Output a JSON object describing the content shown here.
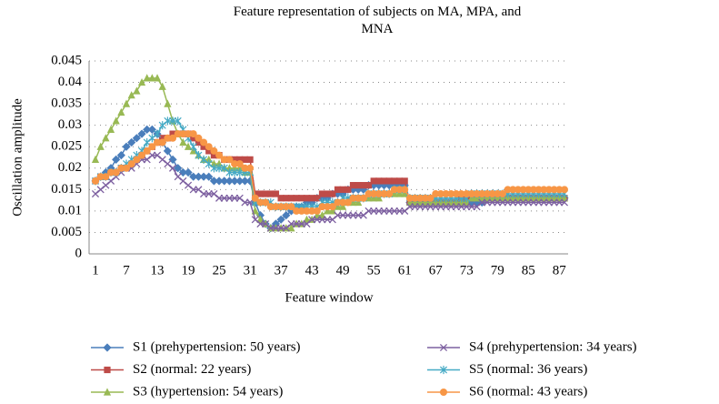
{
  "chart_data": {
    "type": "line",
    "title": "Feature representation of subjects on MA, MPA, and MNA",
    "x_label": "Feature window",
    "y_label": "Oscillation amplitude",
    "categories": [
      "1",
      null,
      null,
      null,
      null,
      null,
      "7",
      null,
      null,
      null,
      null,
      null,
      "13",
      null,
      null,
      null,
      null,
      null,
      "19",
      null,
      null,
      null,
      null,
      null,
      "25",
      null,
      null,
      null,
      null,
      null,
      "31",
      null,
      null,
      null,
      null,
      null,
      "37",
      null,
      null,
      null,
      null,
      null,
      "43",
      null,
      null,
      null,
      null,
      null,
      "49",
      null,
      null,
      null,
      null,
      null,
      "55",
      null,
      null,
      null,
      null,
      null,
      "61",
      null,
      null,
      null,
      null,
      null,
      "67",
      null,
      null,
      null,
      null,
      null,
      "73",
      null,
      null,
      null,
      null,
      null,
      "79",
      null,
      null,
      null,
      null,
      null,
      "85",
      null,
      null,
      null,
      null,
      null,
      "87",
      null
    ],
    "ylim": [
      0,
      0.045
    ],
    "yticks": [
      0,
      0.005,
      0.01,
      0.015,
      0.02,
      0.025,
      0.03,
      0.035,
      0.04,
      0.045
    ],
    "grid": true,
    "legend": "bottom",
    "series": [
      {
        "name": "S1 (prehypertension: 50 years)",
        "color": "#4a7ebb",
        "marker": "diamond",
        "values": [
          0.017,
          0.018,
          0.019,
          0.02,
          0.022,
          0.023,
          0.025,
          0.026,
          0.027,
          0.028,
          0.029,
          0.029,
          0.028,
          0.026,
          0.024,
          0.022,
          0.02,
          0.019,
          0.019,
          0.018,
          0.018,
          0.018,
          0.018,
          0.017,
          0.017,
          0.017,
          0.017,
          0.017,
          0.017,
          0.017,
          0.017,
          0.012,
          0.009,
          0.007,
          0.006,
          0.007,
          0.008,
          0.009,
          0.01,
          0.011,
          0.011,
          0.012,
          0.012,
          0.013,
          0.013,
          0.013,
          0.014,
          0.014,
          0.014,
          0.015,
          0.015,
          0.015,
          0.015,
          0.016,
          0.016,
          0.016,
          0.016,
          0.016,
          0.016,
          0.016,
          0.016,
          0.012,
          0.012,
          0.012,
          0.012,
          0.012,
          0.012,
          0.012,
          0.012,
          0.012,
          0.012,
          0.012,
          0.012,
          0.012,
          0.012,
          0.012,
          0.013,
          0.013,
          0.013,
          0.013,
          0.013,
          0.013,
          0.013,
          0.013,
          0.013,
          0.013,
          0.013,
          0.013,
          0.013,
          0.013,
          0.013,
          0.013
        ]
      },
      {
        "name": "S2 (normal: 22 years)",
        "color": "#be4b48",
        "marker": "square",
        "values": [
          0.017,
          0.018,
          0.018,
          0.019,
          0.019,
          0.02,
          0.02,
          0.021,
          0.022,
          0.023,
          0.024,
          0.025,
          0.026,
          0.027,
          0.027,
          0.028,
          0.028,
          0.028,
          0.028,
          0.027,
          0.026,
          0.025,
          0.024,
          0.023,
          0.023,
          0.022,
          0.022,
          0.022,
          0.022,
          0.022,
          0.022,
          0.014,
          0.014,
          0.014,
          0.014,
          0.014,
          0.013,
          0.013,
          0.013,
          0.013,
          0.013,
          0.013,
          0.013,
          0.013,
          0.014,
          0.014,
          0.014,
          0.015,
          0.015,
          0.015,
          0.016,
          0.016,
          0.016,
          0.016,
          0.017,
          0.017,
          0.017,
          0.017,
          0.017,
          0.017,
          0.017,
          0.012,
          0.012,
          0.012,
          0.012,
          0.012,
          0.012,
          0.012,
          0.012,
          0.012,
          0.012,
          0.013,
          0.013,
          0.013,
          0.013,
          0.013,
          0.013,
          0.013,
          0.013,
          0.013,
          0.013,
          0.013,
          0.013,
          0.013,
          0.013,
          0.013,
          0.013,
          0.013,
          0.013,
          0.013,
          0.013,
          0.013
        ]
      },
      {
        "name": "S3 (hypertension: 54 years)",
        "color": "#98b954",
        "marker": "triangle",
        "values": [
          0.022,
          0.025,
          0.027,
          0.029,
          0.031,
          0.033,
          0.035,
          0.037,
          0.038,
          0.04,
          0.041,
          0.041,
          0.041,
          0.039,
          0.035,
          0.031,
          0.028,
          0.026,
          0.025,
          0.024,
          0.023,
          0.022,
          0.022,
          0.021,
          0.021,
          0.02,
          0.02,
          0.02,
          0.02,
          0.019,
          0.019,
          0.01,
          0.008,
          0.007,
          0.006,
          0.006,
          0.006,
          0.006,
          0.006,
          0.007,
          0.007,
          0.008,
          0.008,
          0.009,
          0.009,
          0.01,
          0.01,
          0.011,
          0.011,
          0.012,
          0.012,
          0.012,
          0.013,
          0.013,
          0.013,
          0.013,
          0.014,
          0.014,
          0.014,
          0.014,
          0.014,
          0.012,
          0.012,
          0.012,
          0.012,
          0.012,
          0.012,
          0.012,
          0.012,
          0.012,
          0.012,
          0.012,
          0.012,
          0.013,
          0.013,
          0.013,
          0.013,
          0.013,
          0.013,
          0.013,
          0.013,
          0.013,
          0.013,
          0.013,
          0.013,
          0.013,
          0.013,
          0.013,
          0.013,
          0.013,
          0.013,
          0.013
        ]
      },
      {
        "name": "S4 (prehypertension: 34 years)",
        "color": "#7d60a0",
        "marker": "x",
        "values": [
          0.014,
          0.015,
          0.016,
          0.017,
          0.018,
          0.019,
          0.02,
          0.02,
          0.021,
          0.022,
          0.022,
          0.023,
          0.023,
          0.022,
          0.021,
          0.02,
          0.018,
          0.017,
          0.016,
          0.015,
          0.015,
          0.014,
          0.014,
          0.014,
          0.013,
          0.013,
          0.013,
          0.013,
          0.013,
          0.012,
          0.012,
          0.008,
          0.007,
          0.007,
          0.006,
          0.006,
          0.006,
          0.006,
          0.007,
          0.007,
          0.007,
          0.007,
          0.008,
          0.008,
          0.008,
          0.008,
          0.008,
          0.009,
          0.009,
          0.009,
          0.009,
          0.009,
          0.009,
          0.01,
          0.01,
          0.01,
          0.01,
          0.01,
          0.01,
          0.01,
          0.01,
          0.011,
          0.011,
          0.011,
          0.011,
          0.011,
          0.011,
          0.011,
          0.011,
          0.011,
          0.011,
          0.011,
          0.011,
          0.011,
          0.011,
          0.012,
          0.012,
          0.012,
          0.012,
          0.012,
          0.012,
          0.012,
          0.012,
          0.012,
          0.012,
          0.012,
          0.012,
          0.012,
          0.012,
          0.012,
          0.012,
          0.012
        ]
      },
      {
        "name": "S5 (normal: 36 years)",
        "color": "#46aac5",
        "marker": "star",
        "values": [
          0.017,
          0.018,
          0.018,
          0.019,
          0.019,
          0.02,
          0.021,
          0.022,
          0.023,
          0.024,
          0.026,
          0.027,
          0.028,
          0.03,
          0.031,
          0.031,
          0.031,
          0.029,
          0.027,
          0.025,
          0.023,
          0.022,
          0.021,
          0.02,
          0.02,
          0.02,
          0.019,
          0.019,
          0.019,
          0.019,
          0.019,
          0.012,
          0.012,
          0.012,
          0.012,
          0.011,
          0.011,
          0.011,
          0.011,
          0.011,
          0.011,
          0.011,
          0.011,
          0.011,
          0.012,
          0.012,
          0.012,
          0.012,
          0.013,
          0.013,
          0.013,
          0.013,
          0.013,
          0.014,
          0.014,
          0.014,
          0.014,
          0.014,
          0.015,
          0.015,
          0.015,
          0.013,
          0.013,
          0.013,
          0.013,
          0.013,
          0.013,
          0.013,
          0.013,
          0.013,
          0.013,
          0.013,
          0.013,
          0.014,
          0.014,
          0.014,
          0.014,
          0.014,
          0.014,
          0.014,
          0.014,
          0.014,
          0.014,
          0.014,
          0.014,
          0.014,
          0.014,
          0.014,
          0.014,
          0.014,
          0.014,
          0.014
        ]
      },
      {
        "name": "S6 (normal: 43 years)",
        "color": "#f79646",
        "marker": "circle",
        "values": [
          0.017,
          0.018,
          0.018,
          0.019,
          0.019,
          0.02,
          0.02,
          0.021,
          0.022,
          0.023,
          0.024,
          0.025,
          0.026,
          0.026,
          0.027,
          0.027,
          0.028,
          0.028,
          0.028,
          0.028,
          0.027,
          0.026,
          0.025,
          0.024,
          0.023,
          0.022,
          0.022,
          0.021,
          0.021,
          0.02,
          0.02,
          0.013,
          0.012,
          0.012,
          0.011,
          0.011,
          0.011,
          0.011,
          0.011,
          0.01,
          0.01,
          0.01,
          0.01,
          0.01,
          0.011,
          0.011,
          0.011,
          0.012,
          0.012,
          0.012,
          0.013,
          0.013,
          0.013,
          0.014,
          0.014,
          0.014,
          0.014,
          0.014,
          0.015,
          0.015,
          0.015,
          0.013,
          0.013,
          0.013,
          0.013,
          0.013,
          0.014,
          0.014,
          0.014,
          0.014,
          0.014,
          0.014,
          0.014,
          0.014,
          0.014,
          0.014,
          0.014,
          0.014,
          0.014,
          0.014,
          0.015,
          0.015,
          0.015,
          0.015,
          0.015,
          0.015,
          0.015,
          0.015,
          0.015,
          0.015,
          0.015,
          0.015
        ]
      }
    ]
  }
}
